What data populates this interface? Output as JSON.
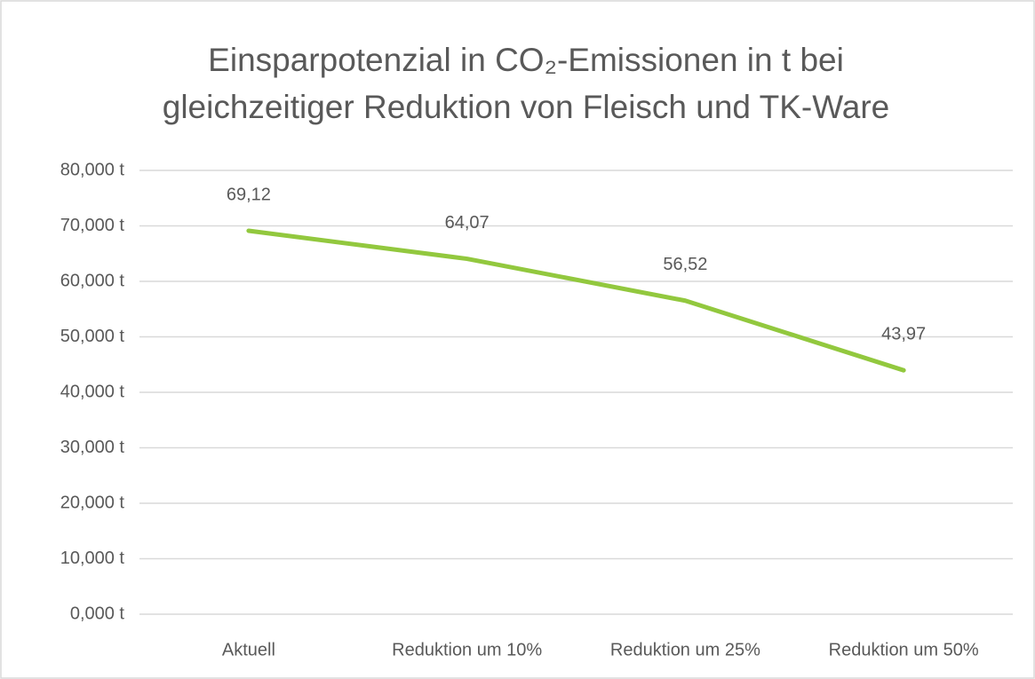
{
  "chart_data": {
    "type": "line",
    "title": [
      "Einsparpotenzial in CO₂-Emissionen in t bei",
      "gleichzeitiger Reduktion von Fleisch und TK-Ware"
    ],
    "categories": [
      "Aktuell",
      "Reduktion um 10%",
      "Reduktion um 25%",
      "Reduktion um 50%"
    ],
    "series": [
      {
        "name": "Einsparpotenzial",
        "color": "#92c83e",
        "values": [
          69.12,
          64.07,
          56.52,
          43.97
        ],
        "value_labels": [
          "69,12",
          "64,07",
          "56,52",
          "43,97"
        ]
      }
    ],
    "ylim": [
      0,
      80
    ],
    "yticks": [
      {
        "value": 0,
        "label": "0,000 t"
      },
      {
        "value": 10,
        "label": "10,000 t"
      },
      {
        "value": 20,
        "label": "20,000 t"
      },
      {
        "value": 30,
        "label": "30,000 t"
      },
      {
        "value": 40,
        "label": "40,000 t"
      },
      {
        "value": 50,
        "label": "50,000 t"
      },
      {
        "value": 60,
        "label": "60,000 t"
      },
      {
        "value": 70,
        "label": "70,000 t"
      },
      {
        "value": 80,
        "label": "80,000 t"
      }
    ],
    "grid": true
  }
}
